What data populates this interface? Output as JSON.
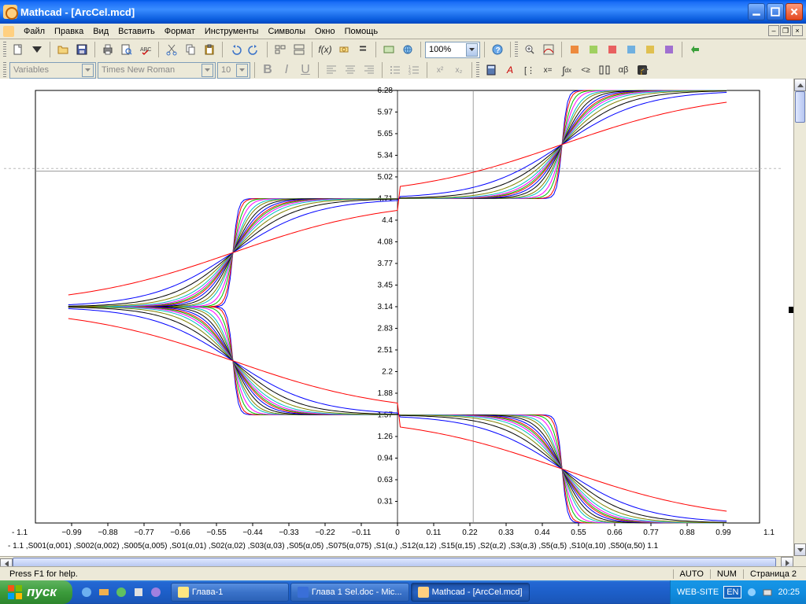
{
  "titlebar": {
    "title": "Mathcad - [ArcCel.mcd]"
  },
  "menubar": {
    "items": [
      "Файл",
      "Правка",
      "Вид",
      "Вставить",
      "Формат",
      "Инструменты",
      "Символы",
      "Окно",
      "Помощь"
    ]
  },
  "toolbar1": {
    "zoom": "100%"
  },
  "toolbar2": {
    "style_label": "Variables",
    "font_label": "Times New Roman",
    "size_label": "10"
  },
  "plot": {
    "x_left_label": "- 1.1",
    "x_right_label": "1.1",
    "y_top": "6.28",
    "x_ticks": [
      "−0.99",
      "−0.88",
      "−0.77",
      "−0.66",
      "−0.55",
      "−0.44",
      "−0.33",
      "−0.22",
      "−0.11",
      "0",
      "0.11",
      "0.22",
      "0.33",
      "0.44",
      "0.55",
      "0.66",
      "0.77",
      "0.88",
      "0.99"
    ],
    "y_ticks": [
      "0.31",
      "0.63",
      "0.94",
      "1.26",
      "1.57",
      "1.88",
      "2.2",
      "2.51",
      "2.83",
      "3.14",
      "3.45",
      "3.77",
      "4.08",
      "4.4",
      "4.71",
      "5.02",
      "5.34",
      "5.65",
      "5.97",
      "6.28"
    ],
    "trace_label": "- 1.1 ,S001(α,001) ,S002(α,002) ,S005(α,005) ,S01(α,01) ,S02(α,02) ,S03(α,03) ,S05(α,05) ,S075(α,075) ,S1(α,) ,S12(α,12) ,S15(α,15) ,S2(α,2) ,S3(α,3) ,S5(α,5) ,S10(α,10) ,S50(α,50)    1.1",
    "colors": [
      "#0000ff",
      "#ff0000",
      "#00c000",
      "#ff00ff",
      "#00c0c0",
      "#808000",
      "#000000",
      "#0000ff",
      "#ff0000",
      "#00c000",
      "#ff00ff",
      "#00c0c0",
      "#808000",
      "#000000",
      "#0000ff",
      "#ff0000"
    ],
    "shapes": [
      0.001,
      0.002,
      0.005,
      0.01,
      0.02,
      0.03,
      0.05,
      0.075,
      0.1,
      0.12,
      0.15,
      0.2,
      0.3,
      0.5,
      1.0,
      5.0
    ],
    "grid_color": "#c0c0c0",
    "crosshair_x": 0.23,
    "crosshair_y": 5.11
  },
  "statusbar": {
    "help": "Press F1 for help.",
    "auto": "AUTO",
    "num": "NUM",
    "page": "Страница 2"
  },
  "taskbar": {
    "start": "пуск",
    "tasks": [
      {
        "label": "Глава-1",
        "icon": "#ffe680"
      },
      {
        "label": "Глава 1 Sel.doc - Mic...",
        "icon": "#3a6fd8"
      },
      {
        "label": "Mathcad - [ArcCel.mcd]",
        "icon": "#ffd080",
        "active": true
      }
    ],
    "tray_site": "WEB-SITE",
    "lang": "EN",
    "clock": "20:25"
  }
}
